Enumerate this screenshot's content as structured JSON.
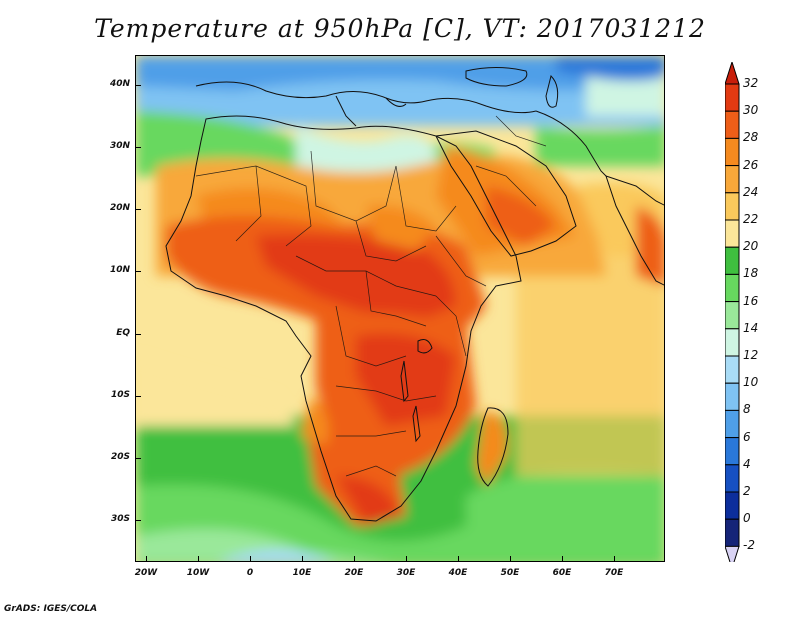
{
  "title": "Temperature at 950hPa [C], VT: 2017031212",
  "map": {
    "lat_labels": [
      "40N",
      "30N",
      "20N",
      "10N",
      "EQ",
      "10S",
      "20S",
      "30S"
    ],
    "lon_labels": [
      "20W",
      "10W",
      "0",
      "10E",
      "20E",
      "30E",
      "40E",
      "50E",
      "60E",
      "70E"
    ],
    "lon_range": [
      -22,
      80
    ],
    "lat_range": [
      -37,
      45
    ]
  },
  "colorbar": {
    "labels": [
      "32",
      "30",
      "28",
      "26",
      "24",
      "22",
      "20",
      "18",
      "16",
      "14",
      "12",
      "10",
      "8",
      "6",
      "4",
      "2",
      "0",
      "-2"
    ],
    "colors": [
      "#e23a12",
      "#ee5e18",
      "#f58a1f",
      "#f8a83a",
      "#fac95c",
      "#fbe69a",
      "#3fbf3f",
      "#67d85f",
      "#9ae89a",
      "#cff5e3",
      "#a9dcf6",
      "#7fc3f3",
      "#4f9fe8",
      "#2a78da",
      "#1650c2",
      "#0c2e9c",
      "#152478"
    ],
    "top_arrow_color": "#c81e0a",
    "bottom_arrow_color": "#d9d3f4"
  },
  "credit": "GrADS: IGES/COLA"
}
